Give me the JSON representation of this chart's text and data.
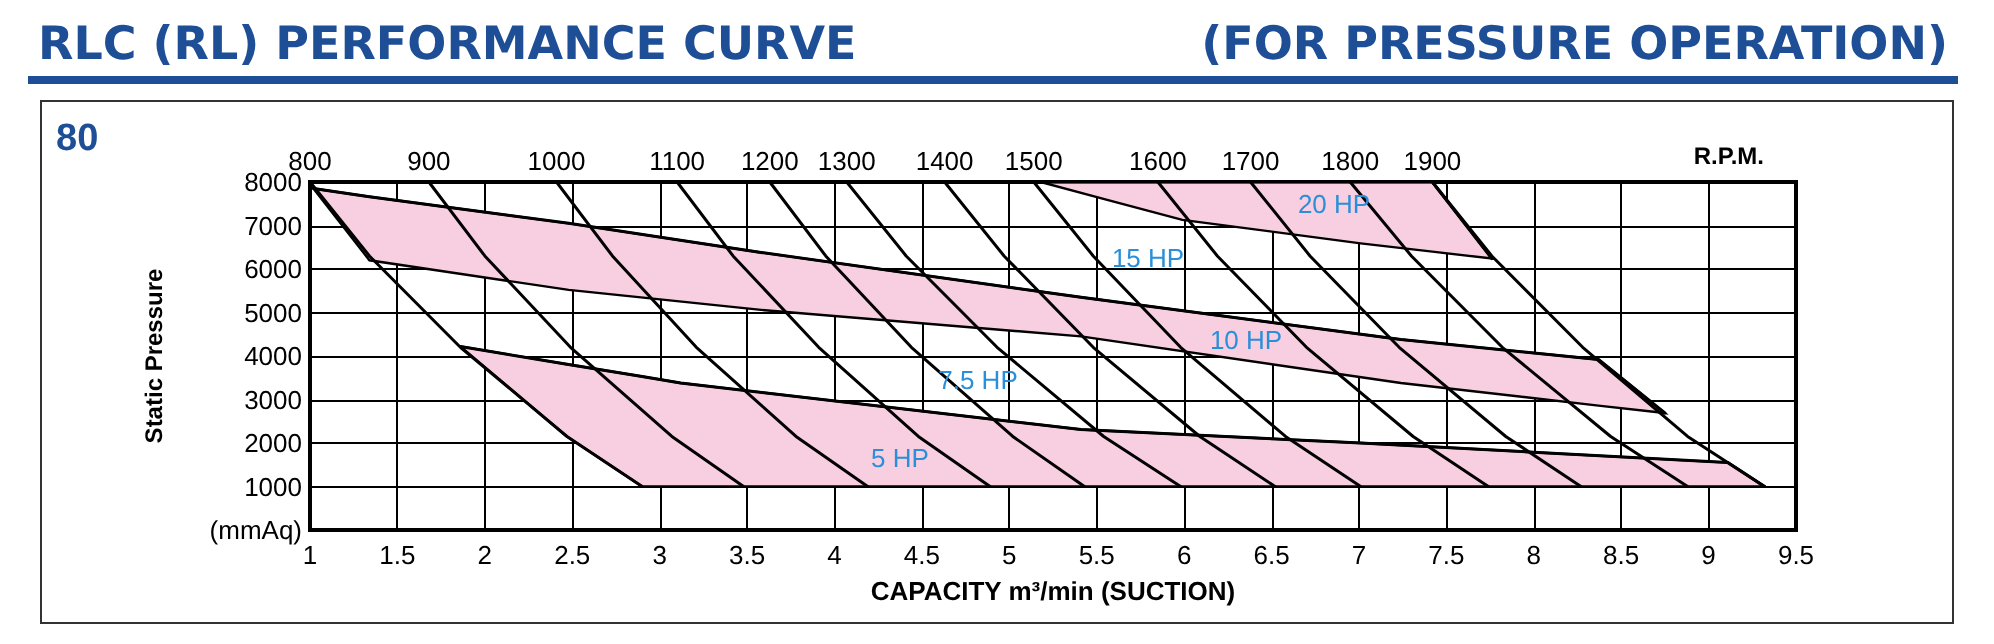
{
  "chart_data": {
    "type": "line",
    "title": "RLC (RL) PERFORMANCE CURVE",
    "subtitle": "(FOR PRESSURE OPERATION)",
    "xlabel": "CAPACITY m³/min (SUCTION)",
    "ylabel": "Static Pressure",
    "xlim": [
      1,
      9.5
    ],
    "xticks": [
      1,
      1.5,
      2,
      2.5,
      3,
      3.5,
      4,
      4.5,
      5,
      5.5,
      6,
      6.5,
      7,
      7.5,
      8,
      8.5,
      9,
      9.5
    ],
    "ylim": [
      0,
      8000
    ],
    "yticks": [
      {
        "value": 0,
        "label": "(mmAq)"
      },
      1000,
      2000,
      3000,
      4000,
      5000,
      6000,
      7000,
      8000
    ],
    "grid": true,
    "marker": "none",
    "line_style": "solid",
    "annotations": [
      "80",
      "R.P.M.",
      "20 HP",
      "15 HP",
      "10 HP",
      "7.5 HP",
      "5 HP"
    ],
    "series": [
      {
        "color": "#000000",
        "x": [
          5.18,
          5.56,
          5.99,
          7.01,
          7.42,
          7.76
        ],
        "values": [
          8000,
          8000,
          8000,
          8000,
          8000,
          6240
        ],
        "lower": [
          8000,
          7590,
          7130,
          6590,
          6400,
          6240
        ],
        "upper": [
          8000,
          8000,
          8000,
          8000,
          8000,
          6240
        ]
      },
      {
        "color": "#000000",
        "x": [
          1.02,
          1.34,
          2.48,
          3.58,
          5.41,
          7.24,
          8.37,
          8.75
        ],
        "values": [
          7850,
          7660,
          7050,
          6380,
          5350,
          4380,
          3920,
          2690
        ],
        "lower": [
          7850,
          6200,
          5520,
          5060,
          4450,
          3380,
          2860,
          2690
        ],
        "upper": [
          7850,
          7660,
          7050,
          6380,
          5350,
          4380,
          3920,
          2690
        ]
      },
      {
        "color": "#000000",
        "x": [
          1.86,
          2.47,
          2.9,
          3.12,
          5.41,
          7.01,
          9.11,
          9.32
        ],
        "values": [
          4220,
          3810,
          3530,
          3380,
          2310,
          2000,
          1550,
          1000
        ],
        "lower": [
          4220,
          2150,
          1000,
          1000,
          1000,
          1000,
          1000,
          1000
        ],
        "upper": [
          4220,
          3810,
          3530,
          3380,
          2310,
          2000,
          1550,
          1000
        ]
      },
      {
        "name": "800",
        "color": "#000000",
        "x": [
          1.0,
          1.34,
          1.86,
          2.47,
          2.9
        ],
        "values": [
          8000,
          6300,
          4200,
          2150,
          1000
        ]
      },
      {
        "name": "900",
        "color": "#000000",
        "x": [
          1.68,
          2.0,
          2.49,
          3.07,
          3.48
        ],
        "values": [
          8000,
          6300,
          4200,
          2150,
          1000
        ]
      },
      {
        "name": "1000",
        "color": "#000000",
        "x": [
          2.41,
          2.73,
          3.21,
          3.78,
          4.19
        ],
        "values": [
          8000,
          6300,
          4200,
          2150,
          1000
        ]
      },
      {
        "name": "1100",
        "color": "#000000",
        "x": [
          3.1,
          3.42,
          3.91,
          4.48,
          4.89
        ],
        "values": [
          8000,
          6300,
          4200,
          2150,
          1000
        ]
      },
      {
        "name": "1200",
        "color": "#000000",
        "x": [
          3.63,
          3.95,
          4.44,
          5.02,
          5.43
        ],
        "values": [
          8000,
          6300,
          4200,
          2150,
          1000
        ]
      },
      {
        "name": "1300",
        "color": "#000000",
        "x": [
          4.07,
          4.41,
          4.93,
          5.54,
          5.98
        ],
        "values": [
          8000,
          6300,
          4200,
          2150,
          1000
        ]
      },
      {
        "name": "1400",
        "color": "#000000",
        "x": [
          4.63,
          4.97,
          5.48,
          6.09,
          6.52
        ],
        "values": [
          8000,
          6300,
          4200,
          2150,
          1000
        ]
      },
      {
        "name": "1500",
        "color": "#000000",
        "x": [
          5.14,
          5.48,
          5.98,
          6.58,
          7.01
        ],
        "values": [
          8000,
          6300,
          4200,
          2150,
          1000
        ]
      },
      {
        "name": "1600",
        "color": "#000000",
        "x": [
          5.85,
          6.19,
          6.7,
          7.31,
          7.74
        ],
        "values": [
          8000,
          6300,
          4200,
          2150,
          1000
        ]
      },
      {
        "name": "1700",
        "color": "#000000",
        "x": [
          6.38,
          6.72,
          7.23,
          7.84,
          8.27
        ],
        "values": [
          8000,
          6300,
          4200,
          2150,
          1000
        ]
      },
      {
        "name": "1800",
        "color": "#000000",
        "x": [
          6.95,
          7.3,
          7.82,
          8.44,
          8.88
        ],
        "values": [
          8000,
          6300,
          4200,
          2150,
          1000
        ]
      },
      {
        "name": "1900",
        "color": "#000000",
        "x": [
          7.42,
          7.76,
          8.28,
          8.88,
          9.32
        ],
        "values": [
          8000,
          6300,
          4200,
          2150,
          1000
        ]
      }
    ]
  }
}
